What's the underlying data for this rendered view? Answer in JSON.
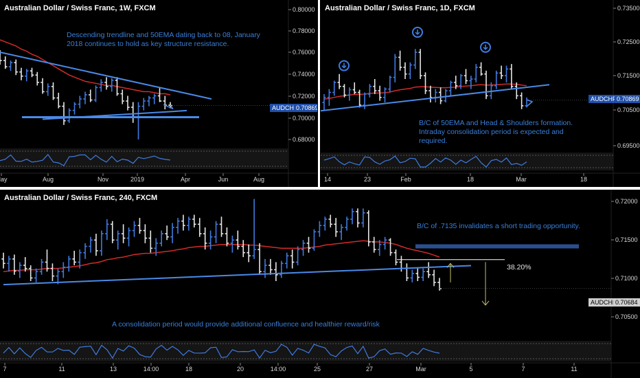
{
  "colors": {
    "background": "#000000",
    "up_bar": "#3f7be0",
    "down_bar": "#e6e6e6",
    "ema": "#d42a2a",
    "trendline": "#4a8ae8",
    "annotation": "#3a7fd9",
    "fib": "#ffffff",
    "arrow": "#c8c060",
    "separator": "#ffffff"
  },
  "panels": {
    "weekly": {
      "title": "Australian Dollar / Swiss Franc, 1W, FXCM",
      "note": "Descending trendline and 50EMA dating back to 08, January 2018 continues to hold as key structure resistance.",
      "price_tag": "AUDCHF",
      "price_value": "0.70869",
      "y_ticks": [
        "0.80000",
        "0.78000",
        "0.76000",
        "0.74000",
        "0.72000",
        "0.70000",
        "0.68000"
      ],
      "x_ticks": [
        "May",
        "Aug",
        "Nov",
        "2019",
        "Apr",
        "Jun",
        "Aug"
      ]
    },
    "daily": {
      "title": "Australian Dollar / Swiss Franc, 1D, FXCM",
      "note": "B/C of 50EMA and Head & Shoulders formation. Intraday consolidation period is expected and required.",
      "price_tag": "AUDCHF",
      "price_value": "0.70869",
      "y_ticks": [
        "0.73500",
        "0.72500",
        "0.71500",
        "0.70500",
        "0.69500"
      ],
      "x_ticks": [
        "14",
        "23",
        "Feb",
        "18",
        "Mar",
        "18"
      ]
    },
    "h4": {
      "title": "Australian Dollar / Swiss Franc, 240, FXCM",
      "note_top": "B/C of .7135 invalidates a short trading opportunity.",
      "note_bottom": "A consolidation period would provide additional confluence and healthier reward/risk",
      "fib_label": "38.20%",
      "price_tag": "AUDCHF",
      "price_value": "0.70684",
      "y_ticks": [
        "0.72000",
        "0.71500",
        "0.71000",
        "0.70500"
      ],
      "x_ticks": [
        "7",
        "11",
        "13",
        "14:00",
        "18",
        "20",
        "14:00",
        "25",
        "27",
        "Mar",
        "5",
        "7",
        "11"
      ]
    }
  },
  "chart_data": [
    {
      "type": "bar",
      "title": "Australian Dollar / Swiss Franc, 1W, FXCM",
      "ylim": [
        0.67,
        0.805
      ],
      "last_price": 0.70869,
      "ema_label": "50EMA",
      "ohlc": [
        [
          0.757,
          0.762,
          0.748,
          0.752
        ],
        [
          0.752,
          0.756,
          0.744,
          0.746
        ],
        [
          0.746,
          0.752,
          0.742,
          0.75
        ],
        [
          0.75,
          0.753,
          0.738,
          0.741
        ],
        [
          0.741,
          0.745,
          0.733,
          0.737
        ],
        [
          0.737,
          0.744,
          0.732,
          0.742
        ],
        [
          0.742,
          0.745,
          0.736,
          0.738
        ],
        [
          0.738,
          0.741,
          0.728,
          0.731
        ],
        [
          0.731,
          0.735,
          0.72,
          0.722
        ],
        [
          0.722,
          0.73,
          0.718,
          0.727
        ],
        [
          0.727,
          0.731,
          0.714,
          0.716
        ],
        [
          0.716,
          0.721,
          0.706,
          0.708
        ],
        [
          0.708,
          0.712,
          0.69,
          0.694
        ],
        [
          0.694,
          0.706,
          0.692,
          0.704
        ],
        [
          0.704,
          0.712,
          0.7,
          0.71
        ],
        [
          0.71,
          0.718,
          0.706,
          0.715
        ],
        [
          0.715,
          0.722,
          0.71,
          0.719
        ],
        [
          0.719,
          0.724,
          0.712,
          0.714
        ],
        [
          0.714,
          0.728,
          0.712,
          0.726
        ],
        [
          0.726,
          0.734,
          0.722,
          0.731
        ],
        [
          0.731,
          0.736,
          0.724,
          0.727
        ],
        [
          0.727,
          0.735,
          0.722,
          0.733
        ],
        [
          0.733,
          0.736,
          0.718,
          0.72
        ],
        [
          0.72,
          0.724,
          0.71,
          0.713
        ],
        [
          0.713,
          0.718,
          0.704,
          0.707
        ],
        [
          0.707,
          0.712,
          0.692,
          0.698
        ],
        [
          0.698,
          0.712,
          0.676,
          0.708
        ],
        [
          0.708,
          0.716,
          0.704,
          0.713
        ],
        [
          0.713,
          0.718,
          0.708,
          0.716
        ],
        [
          0.716,
          0.72,
          0.71,
          0.718
        ],
        [
          0.718,
          0.726,
          0.712,
          0.713
        ],
        [
          0.713,
          0.718,
          0.705,
          0.709
        ],
        [
          0.709,
          0.712,
          0.706,
          0.7087
        ]
      ],
      "ema": [
        0.772,
        0.77,
        0.768,
        0.766,
        0.763,
        0.761,
        0.758,
        0.756,
        0.753,
        0.75,
        0.747,
        0.744,
        0.741,
        0.738,
        0.736,
        0.734,
        0.732,
        0.731,
        0.73,
        0.729,
        0.728,
        0.728,
        0.727,
        0.726,
        0.725,
        0.724,
        0.723,
        0.722,
        0.722,
        0.721,
        0.72,
        0.72,
        0.719
      ]
    },
    {
      "type": "bar",
      "title": "Australian Dollar / Swiss Franc, 1D, FXCM",
      "ylim": [
        0.693,
        0.737
      ],
      "last_price": 0.70869,
      "ema_label": "50EMA",
      "ohlc": [
        [
          0.708,
          0.7105,
          0.7055,
          0.7095
        ],
        [
          0.7095,
          0.712,
          0.707,
          0.711
        ],
        [
          0.711,
          0.7145,
          0.71,
          0.714
        ],
        [
          0.714,
          0.7165,
          0.712,
          0.7128
        ],
        [
          0.7128,
          0.7135,
          0.7095,
          0.7102
        ],
        [
          0.7102,
          0.7125,
          0.7085,
          0.7118
        ],
        [
          0.7118,
          0.714,
          0.7105,
          0.711
        ],
        [
          0.711,
          0.7118,
          0.7065,
          0.7072
        ],
        [
          0.7072,
          0.711,
          0.706,
          0.7105
        ],
        [
          0.7105,
          0.7135,
          0.7095,
          0.7128
        ],
        [
          0.7128,
          0.715,
          0.7105,
          0.7115
        ],
        [
          0.7115,
          0.713,
          0.7085,
          0.7095
        ],
        [
          0.7095,
          0.7125,
          0.708,
          0.712
        ],
        [
          0.712,
          0.716,
          0.711,
          0.7155
        ],
        [
          0.7155,
          0.7225,
          0.714,
          0.7215
        ],
        [
          0.7215,
          0.7235,
          0.7175,
          0.7185
        ],
        [
          0.7185,
          0.72,
          0.715,
          0.7165
        ],
        [
          0.7165,
          0.72,
          0.715,
          0.7192
        ],
        [
          0.7192,
          0.724,
          0.718,
          0.723
        ],
        [
          0.723,
          0.724,
          0.715,
          0.716
        ],
        [
          0.716,
          0.717,
          0.7105,
          0.7115
        ],
        [
          0.7115,
          0.713,
          0.708,
          0.7095
        ],
        [
          0.7095,
          0.712,
          0.708,
          0.711
        ],
        [
          0.711,
          0.7125,
          0.7075,
          0.7085
        ],
        [
          0.7085,
          0.712,
          0.708,
          0.7115
        ],
        [
          0.7115,
          0.7145,
          0.71,
          0.714
        ],
        [
          0.714,
          0.716,
          0.712,
          0.713
        ],
        [
          0.713,
          0.7165,
          0.712,
          0.716
        ],
        [
          0.716,
          0.718,
          0.7135,
          0.7145
        ],
        [
          0.7145,
          0.716,
          0.712,
          0.715
        ],
        [
          0.715,
          0.7195,
          0.714,
          0.7185
        ],
        [
          0.7185,
          0.72,
          0.716,
          0.7165
        ],
        [
          0.7165,
          0.7175,
          0.709,
          0.71
        ],
        [
          0.71,
          0.714,
          0.709,
          0.713
        ],
        [
          0.713,
          0.7175,
          0.712,
          0.7168
        ],
        [
          0.7168,
          0.719,
          0.715,
          0.716
        ],
        [
          0.716,
          0.719,
          0.714,
          0.718
        ],
        [
          0.718,
          0.7195,
          0.712,
          0.7128
        ],
        [
          0.7128,
          0.714,
          0.709,
          0.71
        ],
        [
          0.71,
          0.711,
          0.706,
          0.707
        ],
        [
          0.707,
          0.7095,
          0.7065,
          0.7087
        ]
      ],
      "ema": [
        0.709,
        0.7092,
        0.7095,
        0.7098,
        0.71,
        0.7102,
        0.7104,
        0.7104,
        0.7105,
        0.7107,
        0.7108,
        0.7108,
        0.7109,
        0.7111,
        0.7115,
        0.7118,
        0.712,
        0.7122,
        0.7126,
        0.7127,
        0.7127,
        0.7126,
        0.7125,
        0.7124,
        0.7124,
        0.7125,
        0.7126,
        0.7128,
        0.7129,
        0.713,
        0.7132,
        0.7133,
        0.7132,
        0.7132,
        0.7133,
        0.7134,
        0.7135,
        0.7135,
        0.7134,
        0.7132,
        0.713
      ]
    },
    {
      "type": "bar",
      "title": "Australian Dollar / Swiss Franc, 240, FXCM",
      "ylim": [
        0.7018,
        0.7216
      ],
      "last_price": 0.70684,
      "levels": [
        {
          "label": "38.20%",
          "value": 0.7114
        },
        {
          "label": ".7135",
          "value": 0.7135
        }
      ],
      "ohlc": [
        [
          0.7115,
          0.7125,
          0.71,
          0.7108
        ],
        [
          0.7108,
          0.712,
          0.7095,
          0.7115
        ],
        [
          0.7115,
          0.7122,
          0.709,
          0.7096
        ],
        [
          0.7096,
          0.711,
          0.7085,
          0.7105
        ],
        [
          0.7105,
          0.7118,
          0.7095,
          0.71
        ],
        [
          0.71,
          0.7105,
          0.708,
          0.7085
        ],
        [
          0.7085,
          0.71,
          0.7078,
          0.7095
        ],
        [
          0.7095,
          0.7115,
          0.709,
          0.711
        ],
        [
          0.711,
          0.713,
          0.7095,
          0.71
        ],
        [
          0.71,
          0.7108,
          0.708,
          0.7088
        ],
        [
          0.7088,
          0.71,
          0.7075,
          0.7095
        ],
        [
          0.7095,
          0.711,
          0.7085,
          0.7102
        ],
        [
          0.7102,
          0.712,
          0.7095,
          0.7115
        ],
        [
          0.7115,
          0.7128,
          0.7105,
          0.711
        ],
        [
          0.711,
          0.713,
          0.71,
          0.7125
        ],
        [
          0.7125,
          0.714,
          0.7115,
          0.7135
        ],
        [
          0.7135,
          0.715,
          0.7125,
          0.7145
        ],
        [
          0.7145,
          0.7155,
          0.712,
          0.7128
        ],
        [
          0.7128,
          0.716,
          0.712,
          0.7155
        ],
        [
          0.7155,
          0.7178,
          0.7145,
          0.717
        ],
        [
          0.717,
          0.7175,
          0.714,
          0.7145
        ],
        [
          0.7145,
          0.716,
          0.713,
          0.7155
        ],
        [
          0.7155,
          0.717,
          0.714,
          0.7148
        ],
        [
          0.7148,
          0.7165,
          0.7135,
          0.716
        ],
        [
          0.716,
          0.7175,
          0.715,
          0.7168
        ],
        [
          0.7168,
          0.718,
          0.7155,
          0.716
        ],
        [
          0.716,
          0.717,
          0.714,
          0.7148
        ],
        [
          0.7148,
          0.716,
          0.7125,
          0.7132
        ],
        [
          0.7132,
          0.7148,
          0.712,
          0.714
        ],
        [
          0.714,
          0.716,
          0.7135,
          0.7155
        ],
        [
          0.7155,
          0.7168,
          0.7145,
          0.715
        ],
        [
          0.715,
          0.7172,
          0.714,
          0.7165
        ],
        [
          0.7165,
          0.718,
          0.7155,
          0.7175
        ],
        [
          0.7175,
          0.7185,
          0.716,
          0.7168
        ],
        [
          0.7168,
          0.7182,
          0.716,
          0.7178
        ],
        [
          0.7178,
          0.7185,
          0.7165,
          0.717
        ],
        [
          0.717,
          0.718,
          0.715,
          0.7155
        ],
        [
          0.7155,
          0.7165,
          0.713,
          0.714
        ],
        [
          0.714,
          0.716,
          0.713,
          0.715
        ],
        [
          0.715,
          0.7175,
          0.714,
          0.717
        ],
        [
          0.717,
          0.7182,
          0.715,
          0.7155
        ],
        [
          0.7155,
          0.7165,
          0.7135,
          0.714
        ],
        [
          0.714,
          0.7152,
          0.7125,
          0.7145
        ],
        [
          0.7145,
          0.716,
          0.713,
          0.7135
        ],
        [
          0.7135,
          0.7145,
          0.7118,
          0.7125
        ],
        [
          0.7125,
          0.7138,
          0.711,
          0.712
        ],
        [
          0.712,
          0.721,
          0.7115,
          0.713
        ],
        [
          0.713,
          0.714,
          0.709,
          0.7095
        ],
        [
          0.7095,
          0.7115,
          0.7085,
          0.7105
        ],
        [
          0.7105,
          0.7115,
          0.709,
          0.7098
        ],
        [
          0.7098,
          0.711,
          0.708,
          0.709
        ],
        [
          0.709,
          0.7112,
          0.7085,
          0.7108
        ],
        [
          0.7108,
          0.7125,
          0.71,
          0.712
        ],
        [
          0.712,
          0.713,
          0.71,
          0.711
        ],
        [
          0.711,
          0.7135,
          0.7105,
          0.713
        ],
        [
          0.713,
          0.7145,
          0.712,
          0.714
        ],
        [
          0.714,
          0.715,
          0.7125,
          0.7132
        ],
        [
          0.7132,
          0.7162,
          0.7128,
          0.7158
        ],
        [
          0.7158,
          0.7175,
          0.715,
          0.7168
        ],
        [
          0.7168,
          0.7182,
          0.716,
          0.7178
        ],
        [
          0.7178,
          0.7185,
          0.7165,
          0.717
        ],
        [
          0.717,
          0.718,
          0.715,
          0.7158
        ],
        [
          0.7158,
          0.717,
          0.7145,
          0.7165
        ],
        [
          0.7165,
          0.7182,
          0.716,
          0.7178
        ],
        [
          0.7178,
          0.7195,
          0.717,
          0.719
        ],
        [
          0.719,
          0.7195,
          0.7165,
          0.7172
        ],
        [
          0.7172,
          0.7195,
          0.7165,
          0.7188
        ],
        [
          0.7188,
          0.7192,
          0.7135,
          0.7142
        ],
        [
          0.7142,
          0.715,
          0.7125,
          0.713
        ],
        [
          0.713,
          0.7145,
          0.712,
          0.7138
        ],
        [
          0.7138,
          0.715,
          0.713,
          0.7145
        ],
        [
          0.7145,
          0.7148,
          0.712,
          0.7125
        ],
        [
          0.7125,
          0.713,
          0.7105,
          0.711
        ],
        [
          0.711,
          0.712,
          0.7095,
          0.71
        ],
        [
          0.71,
          0.7108,
          0.708,
          0.7085
        ],
        [
          0.7085,
          0.7098,
          0.7078,
          0.7092
        ],
        [
          0.7092,
          0.71,
          0.708,
          0.7086
        ],
        [
          0.7086,
          0.71,
          0.708,
          0.7095
        ],
        [
          0.7095,
          0.711,
          0.7085,
          0.709
        ],
        [
          0.709,
          0.7098,
          0.7072,
          0.7078
        ],
        [
          0.7078,
          0.7085,
          0.7065,
          0.7068
        ]
      ],
      "ema": [
        0.7095,
        0.7096,
        0.7097,
        0.7097,
        0.7098,
        0.7098,
        0.7098,
        0.7099,
        0.71,
        0.71,
        0.71,
        0.7101,
        0.7102,
        0.7103,
        0.7104,
        0.7106,
        0.7108,
        0.7109,
        0.7111,
        0.7114,
        0.7115,
        0.7117,
        0.7118,
        0.712,
        0.7122,
        0.7123,
        0.7124,
        0.7124,
        0.7125,
        0.7126,
        0.7127,
        0.7128,
        0.713,
        0.7131,
        0.7133,
        0.7134,
        0.7135,
        0.7135,
        0.7136,
        0.7137,
        0.7138,
        0.7138,
        0.7138,
        0.7138,
        0.7138,
        0.7137,
        0.7137,
        0.7136,
        0.7135,
        0.7134,
        0.7133,
        0.7132,
        0.7132,
        0.7132,
        0.7132,
        0.7132,
        0.7133,
        0.7134,
        0.7135,
        0.7137,
        0.7138,
        0.7139,
        0.714,
        0.7141,
        0.7142,
        0.7143,
        0.7144,
        0.7143,
        0.7142,
        0.7142,
        0.7141,
        0.714,
        0.7138,
        0.7135,
        0.7132,
        0.713,
        0.7128,
        0.7126,
        0.7124,
        0.7121,
        0.7118
      ]
    }
  ]
}
